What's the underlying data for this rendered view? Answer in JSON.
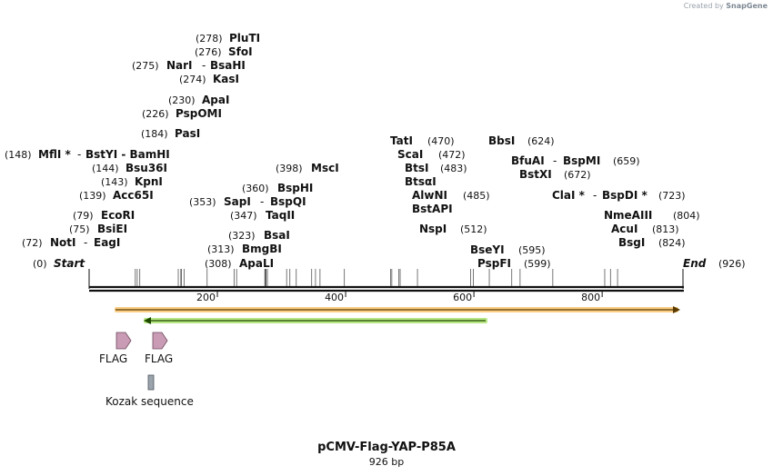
{
  "credit": {
    "prefix": "Created by",
    "brand": "SnapGene"
  },
  "title": "pCMV-Flag-YAP-P85A",
  "size_label": "926 bp",
  "total_bp": 926,
  "ticks": [
    200,
    400,
    600,
    800
  ],
  "start_label": "Start",
  "end_label": "End",
  "end_pos": "(926)",
  "start_pos": "(0)",
  "enzymes": [
    {
      "pos": 278,
      "name": "PluTI",
      "label": "(278)",
      "extra": ""
    },
    {
      "pos": 276,
      "name": "SfoI",
      "label": "(276)",
      "extra": ""
    },
    {
      "pos": 275,
      "name": "NarI",
      "label": "(275)",
      "extra": "BsaHI"
    },
    {
      "pos": 274,
      "name": "KasI",
      "label": "(274)",
      "extra": ""
    },
    {
      "pos": 230,
      "name": "ApaI",
      "label": "(230)",
      "extra": ""
    },
    {
      "pos": 226,
      "name": "PspOMI",
      "label": "(226)",
      "extra": ""
    },
    {
      "pos": 184,
      "name": "PasI",
      "label": "(184)",
      "extra": ""
    },
    {
      "pos": 148,
      "name": "MflI *",
      "label": "(148)",
      "extra": "BstYI  -  BamHI"
    },
    {
      "pos": 144,
      "name": "Bsu36I",
      "label": "(144)",
      "extra": ""
    },
    {
      "pos": 143,
      "name": "KpnI",
      "label": "(143)",
      "extra": ""
    },
    {
      "pos": 139,
      "name": "Acc65I",
      "label": "(139)",
      "extra": ""
    },
    {
      "pos": 79,
      "name": "EcoRI",
      "label": "(79)",
      "extra": ""
    },
    {
      "pos": 75,
      "name": "BsiEI",
      "label": "(75)",
      "extra": ""
    },
    {
      "pos": 72,
      "name": "NotI",
      "label": "(72)",
      "extra": "EagI"
    },
    {
      "pos": 398,
      "name": "MscI",
      "label": "(398)",
      "extra": ""
    },
    {
      "pos": 360,
      "name": "BspHI",
      "label": "(360)",
      "extra": ""
    },
    {
      "pos": 353,
      "name": "SapI",
      "label": "(353)",
      "extra": "BspQI"
    },
    {
      "pos": 347,
      "name": "TaqII",
      "label": "(347)",
      "extra": ""
    },
    {
      "pos": 323,
      "name": "BsaI",
      "label": "(323)",
      "extra": ""
    },
    {
      "pos": 313,
      "name": "BmgBI",
      "label": "(313)",
      "extra": ""
    },
    {
      "pos": 308,
      "name": "ApaLI",
      "label": "(308)",
      "extra": ""
    },
    {
      "pos": 470,
      "name": "TatI",
      "label": "(470)",
      "extra": ""
    },
    {
      "pos": 472,
      "name": "ScaI",
      "label": "(472)",
      "extra": ""
    },
    {
      "pos": 483,
      "name": "BtsI",
      "label": "(483)",
      "extra": ""
    },
    {
      "pos": 483,
      "name": "BtsαI",
      "label": "",
      "extra": ""
    },
    {
      "pos": 485,
      "name": "AlwNI",
      "label": "(485)",
      "extra": ""
    },
    {
      "pos": 485,
      "name": "BstAPI",
      "label": "",
      "extra": ""
    },
    {
      "pos": 512,
      "name": "NspI",
      "label": "(512)",
      "extra": ""
    },
    {
      "pos": 624,
      "name": "BbsI",
      "label": "(624)",
      "extra": ""
    },
    {
      "pos": 659,
      "name": "BfuAI",
      "label": "(659)",
      "extra": "BspMI"
    },
    {
      "pos": 672,
      "name": "BstXI",
      "label": "(672)",
      "extra": ""
    },
    {
      "pos": 723,
      "name": "ClaI *",
      "label": "(723)",
      "extra": "BspDI *"
    },
    {
      "pos": 595,
      "name": "BseYI",
      "label": "(595)",
      "extra": ""
    },
    {
      "pos": 599,
      "name": "PspFI",
      "label": "(599)",
      "extra": ""
    },
    {
      "pos": 804,
      "name": "NmeAIII",
      "label": "(804)",
      "extra": ""
    },
    {
      "pos": 813,
      "name": "AcuI",
      "label": "(813)",
      "extra": ""
    },
    {
      "pos": 824,
      "name": "BsgI",
      "label": "(824)",
      "extra": ""
    }
  ],
  "features": [
    {
      "name": "FLAG",
      "kind": "flag"
    },
    {
      "name": "FLAG",
      "kind": "flag"
    },
    {
      "name": "Kozak sequence",
      "kind": "kozak"
    }
  ],
  "colors": {
    "orange": "#f5a623",
    "green": "#7ed321",
    "feature_pink": "#c99bb4",
    "kozak_gray": "#9ba3ad"
  }
}
